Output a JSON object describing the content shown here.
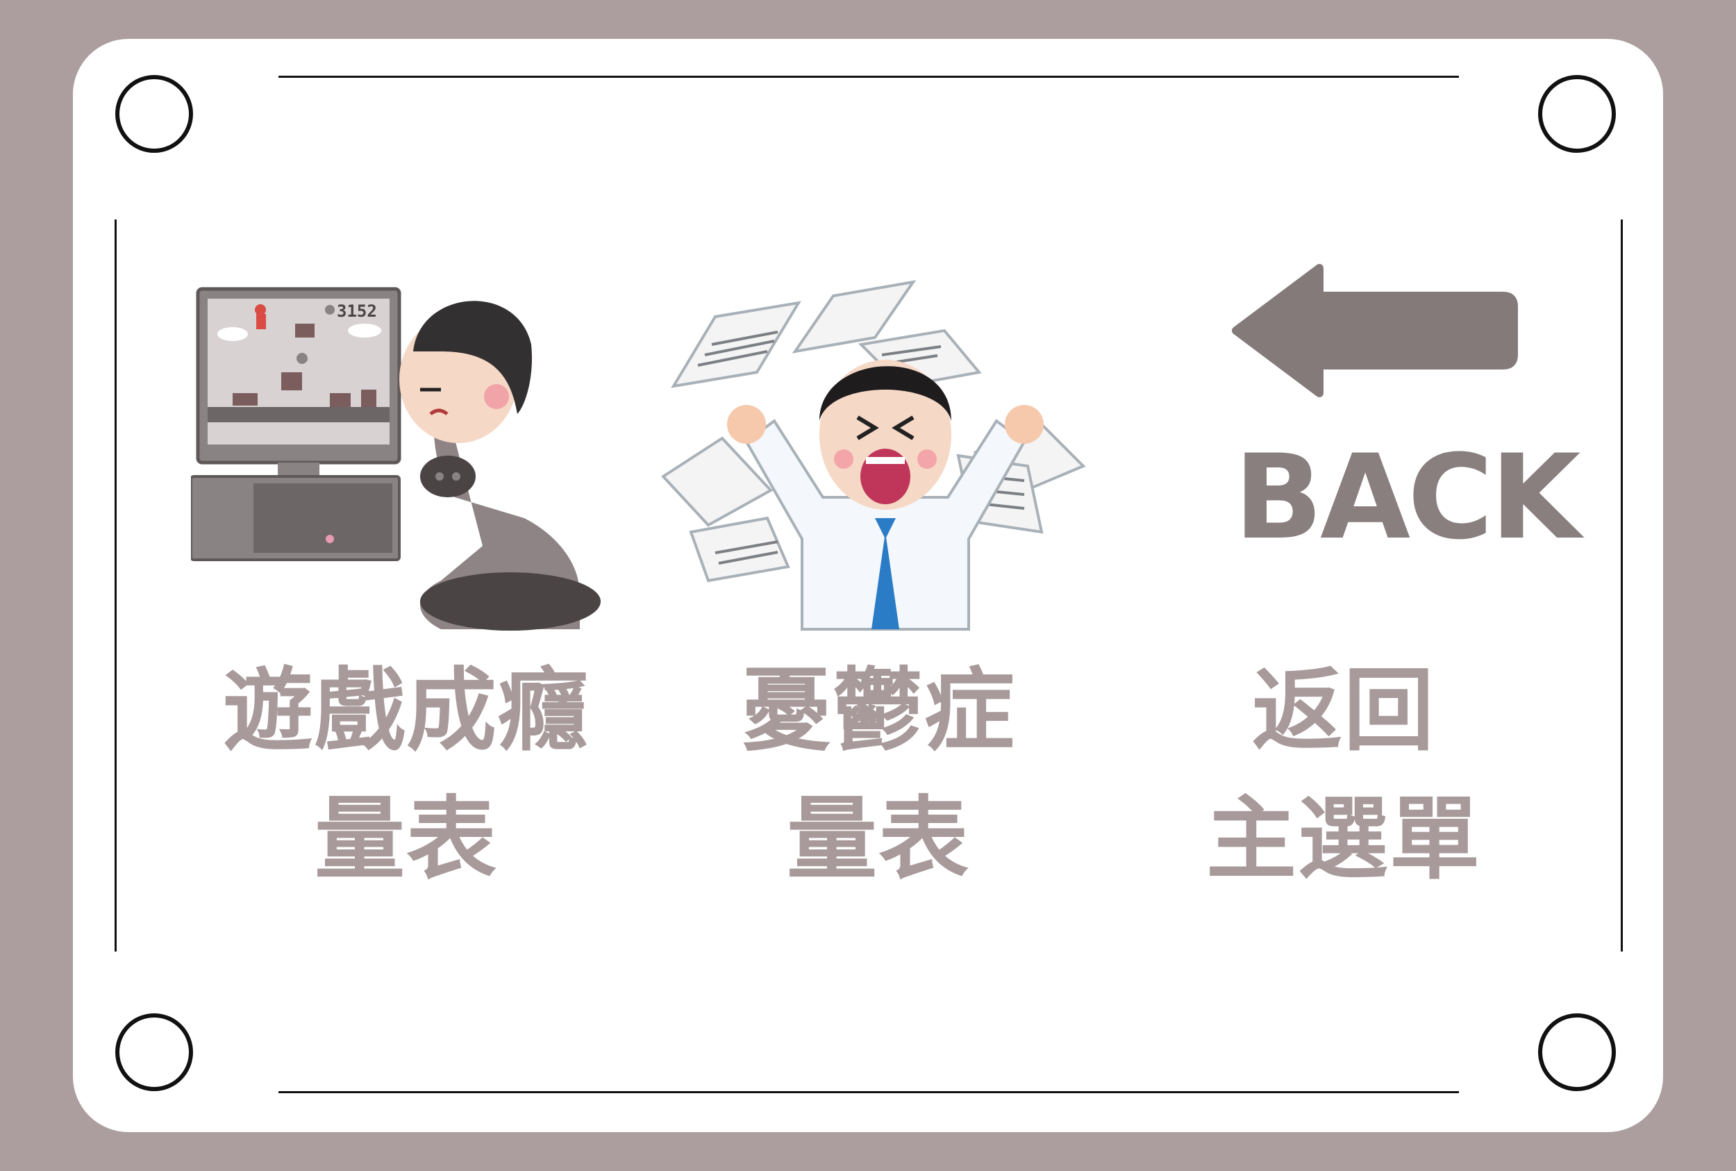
{
  "menu": {
    "items": [
      {
        "id": "game-addiction",
        "line1": "遊戲成癮",
        "line2": "量表",
        "illustration": "person-playing-video-game",
        "score": "3152"
      },
      {
        "id": "depression",
        "line1": "憂鬱症",
        "line2": "量表",
        "illustration": "stressed-office-worker-papers"
      },
      {
        "id": "back",
        "icon": "arrow-left-icon",
        "english": "BACK",
        "line1": "返回",
        "line2": "主選單"
      }
    ]
  },
  "colors": {
    "background": "#ac9e9f",
    "card": "#ffffff",
    "label": "#a89a9b",
    "back": "#8a7f7f",
    "frame": "#111111"
  }
}
